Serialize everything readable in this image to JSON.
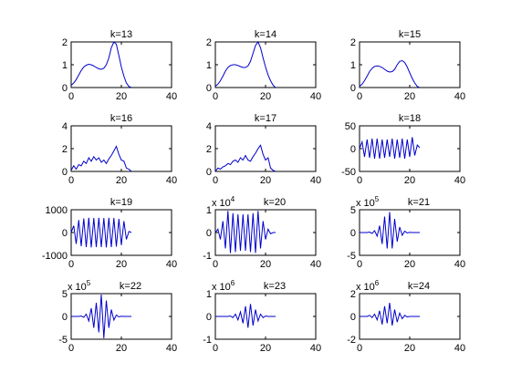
{
  "figure": {
    "background": "#ffffff",
    "axes_color": "#000000",
    "line_color": "#0000cc"
  },
  "chart_data": [
    {
      "type": "line",
      "title": "k=13",
      "xlim": [
        0,
        40
      ],
      "xticks": [
        0,
        20,
        40
      ],
      "ylim": [
        0,
        2
      ],
      "yticks": [
        0,
        1,
        2
      ],
      "ytick_labels": [
        "0",
        "1",
        "2"
      ],
      "exponent": null,
      "x": [
        0,
        1,
        2,
        3,
        4,
        5,
        6,
        7,
        8,
        9,
        10,
        11,
        12,
        13,
        14,
        15,
        16,
        17,
        18,
        19,
        20,
        21,
        22,
        23,
        24
      ],
      "y": [
        0.1,
        0.2,
        0.35,
        0.55,
        0.75,
        0.9,
        0.98,
        1.02,
        1.0,
        0.95,
        0.88,
        0.82,
        0.8,
        0.85,
        1.0,
        1.3,
        1.75,
        2.0,
        1.9,
        1.4,
        0.9,
        0.5,
        0.2,
        0.05,
        0.0
      ]
    },
    {
      "type": "line",
      "title": "k=14",
      "xlim": [
        0,
        40
      ],
      "xticks": [
        0,
        20,
        40
      ],
      "ylim": [
        0,
        2
      ],
      "yticks": [
        0,
        1,
        2
      ],
      "ytick_labels": [
        "0",
        "1",
        "2"
      ],
      "exponent": null,
      "x": [
        0,
        1,
        2,
        3,
        4,
        5,
        6,
        7,
        8,
        9,
        10,
        11,
        12,
        13,
        14,
        15,
        16,
        17,
        18,
        19,
        20,
        21,
        22,
        23,
        24
      ],
      "y": [
        0.05,
        0.15,
        0.3,
        0.5,
        0.72,
        0.88,
        0.97,
        1.0,
        1.0,
        0.97,
        0.92,
        0.88,
        0.88,
        0.95,
        1.15,
        1.5,
        1.85,
        2.0,
        1.75,
        1.3,
        0.9,
        0.55,
        0.3,
        0.1,
        0.0
      ]
    },
    {
      "type": "line",
      "title": "k=15",
      "xlim": [
        0,
        40
      ],
      "xticks": [
        0,
        20,
        40
      ],
      "ylim": [
        0,
        2
      ],
      "yticks": [
        0,
        1,
        2
      ],
      "ytick_labels": [
        "0",
        "1",
        "2"
      ],
      "exponent": null,
      "x": [
        0,
        1,
        2,
        3,
        4,
        5,
        6,
        7,
        8,
        9,
        10,
        11,
        12,
        13,
        14,
        15,
        16,
        17,
        18,
        19,
        20,
        21,
        22,
        23,
        24
      ],
      "y": [
        0.05,
        0.15,
        0.3,
        0.5,
        0.7,
        0.85,
        0.93,
        0.95,
        0.93,
        0.88,
        0.8,
        0.72,
        0.68,
        0.7,
        0.8,
        1.0,
        1.15,
        1.18,
        1.1,
        0.9,
        0.65,
        0.4,
        0.2,
        0.05,
        0.0
      ]
    },
    {
      "type": "line",
      "title": "k=16",
      "xlim": [
        0,
        40
      ],
      "xticks": [
        0,
        20,
        40
      ],
      "ylim": [
        0,
        4
      ],
      "yticks": [
        0,
        2,
        4
      ],
      "ytick_labels": [
        "0",
        "2",
        "4"
      ],
      "exponent": null,
      "x": [
        0,
        1,
        2,
        3,
        4,
        5,
        6,
        7,
        8,
        9,
        10,
        11,
        12,
        13,
        14,
        15,
        16,
        17,
        18,
        19,
        20,
        21,
        22,
        23,
        24
      ],
      "y": [
        0.1,
        0.5,
        0.2,
        0.6,
        0.5,
        0.9,
        0.7,
        1.2,
        0.9,
        1.3,
        1.0,
        1.2,
        0.8,
        1.0,
        0.7,
        1.1,
        1.4,
        1.8,
        2.2,
        1.5,
        1.0,
        0.9,
        0.3,
        0.2,
        0.0
      ]
    },
    {
      "type": "line",
      "title": "k=17",
      "xlim": [
        0,
        40
      ],
      "xticks": [
        0,
        20,
        40
      ],
      "ylim": [
        0,
        4
      ],
      "yticks": [
        0,
        2,
        4
      ],
      "ytick_labels": [
        "0",
        "2",
        "4"
      ],
      "exponent": null,
      "x": [
        0,
        1,
        2,
        3,
        4,
        5,
        6,
        7,
        8,
        9,
        10,
        11,
        12,
        13,
        14,
        15,
        16,
        17,
        18,
        19,
        20,
        21,
        22,
        23,
        24
      ],
      "y": [
        0.0,
        0.3,
        0.2,
        0.4,
        0.5,
        0.7,
        0.6,
        0.9,
        1.0,
        0.8,
        1.2,
        1.0,
        1.4,
        1.0,
        0.9,
        1.3,
        1.6,
        2.0,
        2.3,
        1.5,
        1.0,
        1.2,
        0.3,
        0.1,
        0.0
      ]
    },
    {
      "type": "line",
      "title": "k=18",
      "xlim": [
        0,
        40
      ],
      "xticks": [
        0,
        20,
        40
      ],
      "ylim": [
        -50,
        50
      ],
      "yticks": [
        -50,
        0,
        50
      ],
      "ytick_labels": [
        "-50",
        "0",
        "50"
      ],
      "exponent": null,
      "x": [
        0,
        1,
        2,
        3,
        4,
        5,
        6,
        7,
        8,
        9,
        10,
        11,
        12,
        13,
        14,
        15,
        16,
        17,
        18,
        19,
        20,
        21,
        22,
        23,
        24
      ],
      "y": [
        0,
        15,
        -18,
        20,
        -20,
        22,
        -22,
        22,
        -22,
        20,
        -20,
        20,
        -18,
        22,
        -22,
        20,
        -20,
        22,
        -22,
        20,
        -18,
        25,
        -15,
        8,
        2
      ]
    },
    {
      "type": "line",
      "title": "k=19",
      "xlim": [
        0,
        40
      ],
      "xticks": [
        0,
        20,
        40
      ],
      "ylim": [
        -1000,
        1000
      ],
      "yticks": [
        -1000,
        0,
        1000
      ],
      "ytick_labels": [
        "-1000",
        "0",
        "1000"
      ],
      "exponent": null,
      "x": [
        0,
        1,
        2,
        3,
        4,
        5,
        6,
        7,
        8,
        9,
        10,
        11,
        12,
        13,
        14,
        15,
        16,
        17,
        18,
        19,
        20,
        21,
        22,
        23,
        24
      ],
      "y": [
        0,
        300,
        -500,
        550,
        -600,
        620,
        -640,
        650,
        -650,
        640,
        -640,
        650,
        -640,
        640,
        -650,
        650,
        -640,
        640,
        -620,
        600,
        -550,
        500,
        -300,
        50,
        0
      ]
    },
    {
      "type": "line",
      "title": "k=20",
      "xlim": [
        0,
        40
      ],
      "xticks": [
        0,
        20,
        40
      ],
      "ylim": [
        -1,
        1
      ],
      "yticks": [
        -1,
        0,
        1
      ],
      "ytick_labels": [
        "-1",
        "0",
        "1"
      ],
      "exponent": "4",
      "x": [
        0,
        1,
        2,
        3,
        4,
        5,
        6,
        7,
        8,
        9,
        10,
        11,
        12,
        13,
        14,
        15,
        16,
        17,
        18,
        19,
        20,
        21,
        22,
        23,
        24
      ],
      "y": [
        0,
        0.15,
        -0.3,
        0.5,
        -0.7,
        0.95,
        -0.9,
        0.85,
        -0.85,
        0.8,
        -0.8,
        0.8,
        -0.8,
        0.8,
        -0.85,
        0.85,
        -0.9,
        0.95,
        -0.7,
        0.5,
        -0.3,
        0.15,
        -0.05,
        0,
        0
      ]
    },
    {
      "type": "line",
      "title": "k=21",
      "xlim": [
        0,
        40
      ],
      "xticks": [
        0,
        20,
        40
      ],
      "ylim": [
        -5,
        5
      ],
      "yticks": [
        -5,
        0,
        5
      ],
      "ytick_labels": [
        "-5",
        "0",
        "5"
      ],
      "exponent": "5",
      "x": [
        0,
        1,
        2,
        3,
        4,
        5,
        6,
        7,
        8,
        9,
        10,
        11,
        12,
        13,
        14,
        15,
        16,
        17,
        18,
        19,
        20,
        21,
        22,
        23,
        24
      ],
      "y": [
        0,
        0,
        0,
        0,
        0.1,
        -0.2,
        0.4,
        -0.8,
        1.5,
        -2.5,
        3.5,
        -3.5,
        4.5,
        -3.5,
        3.0,
        -2.0,
        1.2,
        -0.6,
        0.3,
        -0.1,
        0.05,
        0,
        0,
        0,
        0
      ]
    },
    {
      "type": "line",
      "title": "k=22",
      "xlim": [
        0,
        40
      ],
      "xticks": [
        0,
        20,
        40
      ],
      "ylim": [
        -5,
        5
      ],
      "yticks": [
        -5,
        0,
        5
      ],
      "ytick_labels": [
        "-5",
        "0",
        "5"
      ],
      "exponent": "5",
      "x": [
        0,
        1,
        2,
        3,
        4,
        5,
        6,
        7,
        8,
        9,
        10,
        11,
        12,
        13,
        14,
        15,
        16,
        17,
        18,
        19,
        20,
        21,
        22,
        23,
        24
      ],
      "y": [
        0,
        0,
        0,
        0,
        0.1,
        -0.2,
        0.5,
        -1.0,
        1.8,
        -2.5,
        3.0,
        -3.5,
        4.8,
        -4.8,
        3.5,
        -2.5,
        1.5,
        -0.8,
        0.3,
        -0.1,
        0.05,
        0,
        0,
        0,
        0
      ]
    },
    {
      "type": "line",
      "title": "k=23",
      "xlim": [
        0,
        40
      ],
      "xticks": [
        0,
        20,
        40
      ],
      "ylim": [
        -1,
        1
      ],
      "yticks": [
        -1,
        0,
        1
      ],
      "ytick_labels": [
        "-1",
        "0",
        "1"
      ],
      "exponent": "6",
      "x": [
        0,
        1,
        2,
        3,
        4,
        5,
        6,
        7,
        8,
        9,
        10,
        11,
        12,
        13,
        14,
        15,
        16,
        17,
        18,
        19,
        20,
        21,
        22,
        23,
        24
      ],
      "y": [
        0,
        0,
        0,
        0,
        0,
        0,
        0.02,
        -0.05,
        0.1,
        -0.15,
        0.2,
        -0.3,
        0.45,
        -0.5,
        0.55,
        -0.4,
        0.3,
        -0.2,
        0.1,
        -0.05,
        0.02,
        0,
        0,
        0,
        0
      ]
    },
    {
      "type": "line",
      "title": "k=24",
      "xlim": [
        0,
        40
      ],
      "xticks": [
        0,
        20,
        40
      ],
      "ylim": [
        -2,
        2
      ],
      "yticks": [
        -2,
        0,
        2
      ],
      "ytick_labels": [
        "-2",
        "0",
        "2"
      ],
      "exponent": "6",
      "x": [
        0,
        1,
        2,
        3,
        4,
        5,
        6,
        7,
        8,
        9,
        10,
        11,
        12,
        13,
        14,
        15,
        16,
        17,
        18,
        19,
        20,
        21,
        22,
        23,
        24
      ],
      "y": [
        0,
        0,
        0,
        0,
        0.1,
        -0.1,
        0.2,
        -0.3,
        0.5,
        -0.7,
        0.9,
        -0.6,
        1.2,
        -0.8,
        0.6,
        -0.5,
        0.3,
        -0.2,
        0.1,
        -0.05,
        0,
        0,
        0,
        0,
        0
      ]
    }
  ]
}
